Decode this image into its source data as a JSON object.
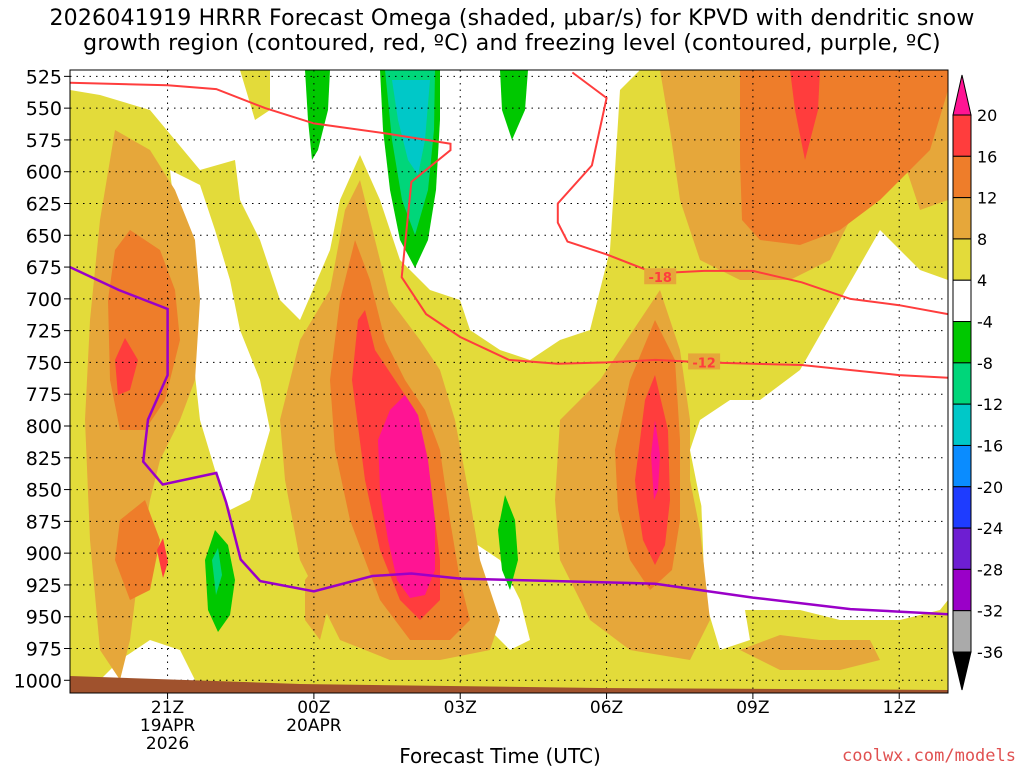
{
  "title_line1": "2026041919 HRRR Forecast Omega (shaded, µbar/s) for KPVD with dendritic snow",
  "title_line2": "growth region (contoured, red, ºC) and freezing level (contoured, purple, ºC)",
  "credit": "coolwx.com/models",
  "chart_data": {
    "type": "heatmap",
    "title": "2026041919 HRRR Forecast Omega (shaded, µbar/s) for KPVD with dendritic snow growth region (contoured, red, ºC) and freezing level (contoured, purple, ºC)",
    "xlabel": "Forecast Time (UTC)",
    "ylabel": "",
    "x_range_hours_utc_from_19Z": [
      0,
      18
    ],
    "y_axis": "pressure (mb), inverted",
    "ylim": [
      1010,
      520
    ],
    "y_ticks": [
      525,
      550,
      575,
      600,
      625,
      650,
      675,
      700,
      725,
      750,
      775,
      800,
      825,
      850,
      875,
      900,
      925,
      950,
      975,
      1000
    ],
    "x_ticks": [
      {
        "h": 2,
        "lines": [
          "21Z",
          "19APR",
          "2026"
        ]
      },
      {
        "h": 5,
        "lines": [
          "00Z",
          "20APR"
        ]
      },
      {
        "h": 8,
        "lines": [
          "03Z"
        ]
      },
      {
        "h": 11,
        "lines": [
          "06Z"
        ]
      },
      {
        "h": 14,
        "lines": [
          "09Z"
        ]
      },
      {
        "h": 17,
        "lines": [
          "12Z"
        ]
      }
    ],
    "grid": true,
    "colorbar": {
      "levels": [
        -36,
        -32,
        -28,
        -24,
        -20,
        -16,
        -12,
        -8,
        -4,
        4,
        8,
        12,
        16,
        20
      ],
      "labels": [
        "20",
        "16",
        "12",
        "8",
        "4",
        "-4",
        "-8",
        "-12",
        "-16",
        "-20",
        "-24",
        "-28",
        "-32",
        "-36"
      ],
      "colors_top_to_bottom": [
        "#ff1493",
        "#ff3d3d",
        "#ee7d2a",
        "#e6a73a",
        "#e3db3a",
        "#ffffff",
        "#00c800",
        "#00d67a",
        "#00c8c8",
        "#0a8cff",
        "#1e3cff",
        "#6e1ed2",
        "#9a00c8",
        "#aaaaaa",
        "#000000"
      ]
    },
    "contour_labels": [
      {
        "text": "-18",
        "h": 12.1,
        "p": 683
      },
      {
        "text": "-12",
        "h": 13.0,
        "p": 750
      }
    ],
    "freezing_level_purple": [
      [
        0,
        675
      ],
      [
        1,
        693
      ],
      [
        2,
        708
      ],
      [
        2,
        760
      ],
      [
        1.6,
        795
      ],
      [
        1.5,
        828
      ],
      [
        1.9,
        846
      ],
      [
        3,
        837
      ],
      [
        3.2,
        860
      ],
      [
        3.5,
        905
      ],
      [
        3.9,
        922
      ],
      [
        5,
        930
      ],
      [
        6.2,
        918
      ],
      [
        7,
        916
      ],
      [
        8,
        920
      ],
      [
        11,
        923
      ],
      [
        12,
        924
      ],
      [
        14,
        935
      ],
      [
        16,
        944
      ],
      [
        18,
        948
      ]
    ],
    "dgz_upper_red": [
      [
        0,
        530
      ],
      [
        2,
        532
      ],
      [
        3,
        535
      ],
      [
        4,
        550
      ],
      [
        5,
        562
      ],
      [
        6.5,
        570
      ],
      [
        7.8,
        578
      ],
      [
        7.8,
        583
      ],
      [
        7,
        608
      ],
      [
        6.8,
        683
      ],
      [
        7.3,
        712
      ],
      [
        8,
        730
      ],
      [
        9,
        748
      ],
      [
        10,
        751
      ],
      [
        11,
        750
      ],
      [
        12,
        748
      ],
      [
        13,
        750
      ],
      [
        15,
        752
      ],
      [
        17,
        760
      ],
      [
        18,
        762
      ]
    ],
    "dgz_lower_red": [
      [
        10.3,
        522
      ],
      [
        11,
        542
      ],
      [
        10.7,
        595
      ],
      [
        10.0,
        625
      ],
      [
        10,
        640
      ],
      [
        10.2,
        655
      ],
      [
        11,
        665
      ],
      [
        12,
        680
      ],
      [
        13,
        678
      ],
      [
        14,
        678
      ],
      [
        15,
        687
      ],
      [
        16,
        700
      ],
      [
        17,
        705
      ],
      [
        18,
        712
      ]
    ],
    "omega_regions": [
      {
        "level": "4-8",
        "region": "broad ascent band across most of domain"
      },
      {
        "level": "16-20+",
        "region": "core near 02Z 20APR 750-925 mb"
      },
      {
        "level": "16-20",
        "region": "core near 07Z 20APR 700-880 mb"
      },
      {
        "level": "-8 to -12",
        "region": "subsidence near 02Z 20APR 525-650 mb"
      }
    ]
  }
}
